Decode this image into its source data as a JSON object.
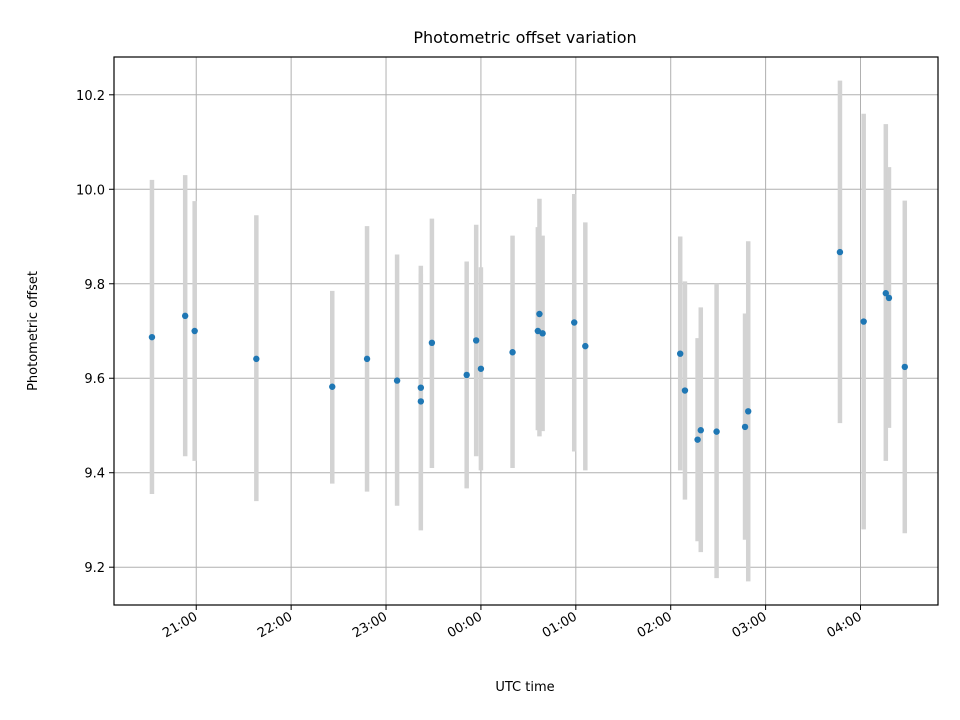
{
  "chart_data": {
    "type": "scatter",
    "title": "Photometric offset variation",
    "xlabel": "UTC time",
    "ylabel": "Photometric offset",
    "x_axis": {
      "kind": "time",
      "xlim": [
        "20:08",
        "04:49"
      ],
      "ticks": [
        "21:00",
        "22:00",
        "23:00",
        "00:00",
        "01:00",
        "02:00",
        "03:00",
        "04:00"
      ]
    },
    "y_axis": {
      "ylim": [
        9.12,
        10.28
      ],
      "ticks": [
        9.2,
        9.4,
        9.6,
        9.8,
        10.0,
        10.2
      ],
      "tick_labels": [
        "9.2",
        "9.4",
        "9.6",
        "9.8",
        "10.0",
        "10.2"
      ]
    },
    "grid": true,
    "colors": {
      "point": "#1f77b4",
      "errorbar": "#d3d3d3",
      "grid": "#b0b0b0"
    },
    "points": [
      {
        "time": "20:32",
        "y": 9.687,
        "ylow": 9.355,
        "yhigh": 10.02
      },
      {
        "time": "20:53",
        "y": 9.732,
        "ylow": 9.435,
        "yhigh": 10.03
      },
      {
        "time": "20:59",
        "y": 9.7,
        "ylow": 9.425,
        "yhigh": 9.975
      },
      {
        "time": "21:38",
        "y": 9.641,
        "ylow": 9.34,
        "yhigh": 9.945
      },
      {
        "time": "22:26",
        "y": 9.582,
        "ylow": 9.377,
        "yhigh": 9.785
      },
      {
        "time": "22:48",
        "y": 9.641,
        "ylow": 9.36,
        "yhigh": 9.922
      },
      {
        "time": "23:07",
        "y": 9.595,
        "ylow": 9.33,
        "yhigh": 9.862
      },
      {
        "time": "23:22",
        "y": 9.58,
        "ylow": 9.32,
        "yhigh": 9.838
      },
      {
        "time": "23:22",
        "y": 9.551,
        "ylow": 9.278,
        "yhigh": 9.82
      },
      {
        "time": "23:29",
        "y": 9.675,
        "ylow": 9.41,
        "yhigh": 9.938
      },
      {
        "time": "23:51",
        "y": 9.607,
        "ylow": 9.367,
        "yhigh": 9.847
      },
      {
        "time": "23:57",
        "y": 9.68,
        "ylow": 9.435,
        "yhigh": 9.925
      },
      {
        "time": "00:00",
        "y": 9.62,
        "ylow": 9.405,
        "yhigh": 9.835
      },
      {
        "time": "00:20",
        "y": 9.655,
        "ylow": 9.41,
        "yhigh": 9.902
      },
      {
        "time": "00:36",
        "y": 9.7,
        "ylow": 9.49,
        "yhigh": 9.92
      },
      {
        "time": "00:37",
        "y": 9.736,
        "ylow": 9.477,
        "yhigh": 9.98
      },
      {
        "time": "00:39",
        "y": 9.695,
        "ylow": 9.488,
        "yhigh": 9.902
      },
      {
        "time": "00:59",
        "y": 9.718,
        "ylow": 9.445,
        "yhigh": 9.99
      },
      {
        "time": "01:06",
        "y": 9.668,
        "ylow": 9.405,
        "yhigh": 9.93
      },
      {
        "time": "02:06",
        "y": 9.652,
        "ylow": 9.405,
        "yhigh": 9.9
      },
      {
        "time": "02:09",
        "y": 9.574,
        "ylow": 9.343,
        "yhigh": 9.805
      },
      {
        "time": "02:17",
        "y": 9.47,
        "ylow": 9.255,
        "yhigh": 9.685
      },
      {
        "time": "02:19",
        "y": 9.49,
        "ylow": 9.232,
        "yhigh": 9.75
      },
      {
        "time": "02:29",
        "y": 9.487,
        "ylow": 9.177,
        "yhigh": 9.8
      },
      {
        "time": "02:47",
        "y": 9.497,
        "ylow": 9.258,
        "yhigh": 9.737
      },
      {
        "time": "02:49",
        "y": 9.53,
        "ylow": 9.17,
        "yhigh": 9.89
      },
      {
        "time": "03:47",
        "y": 9.867,
        "ylow": 9.505,
        "yhigh": 10.23
      },
      {
        "time": "04:02",
        "y": 9.72,
        "ylow": 9.28,
        "yhigh": 10.16
      },
      {
        "time": "04:16",
        "y": 9.78,
        "ylow": 9.425,
        "yhigh": 10.138
      },
      {
        "time": "04:18",
        "y": 9.77,
        "ylow": 9.495,
        "yhigh": 10.047
      },
      {
        "time": "04:28",
        "y": 9.624,
        "ylow": 9.272,
        "yhigh": 9.976
      }
    ]
  }
}
